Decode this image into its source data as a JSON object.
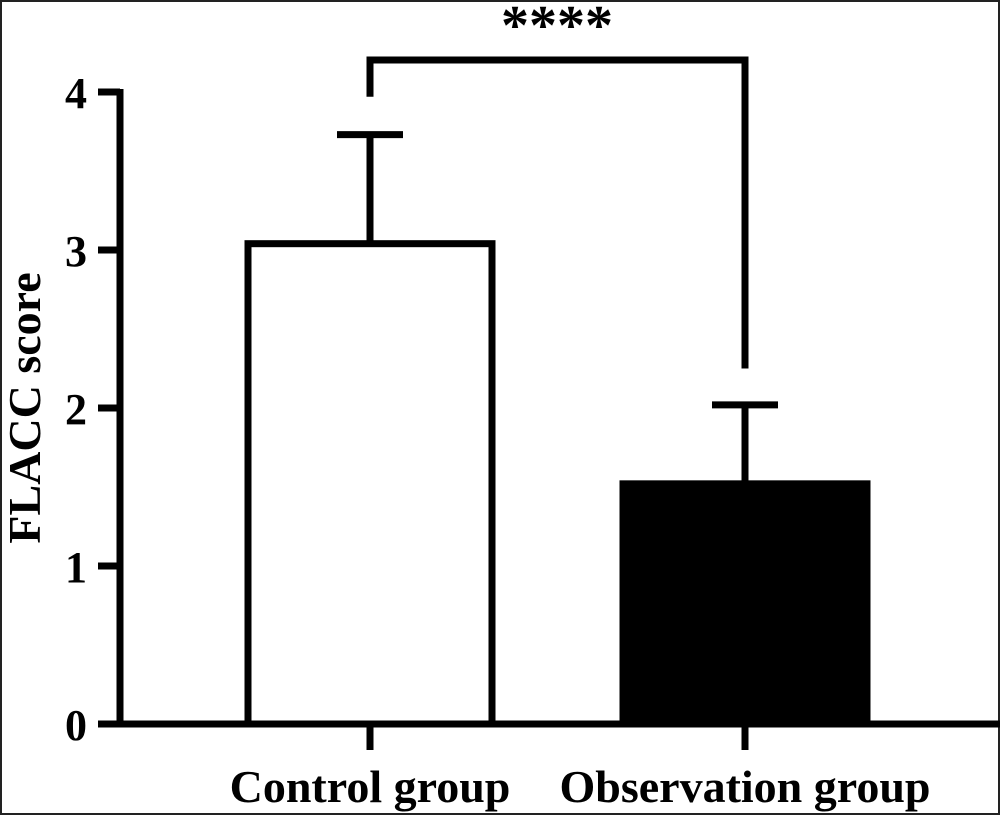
{
  "chart_data": {
    "type": "bar",
    "title": "",
    "xlabel": "",
    "ylabel": "FLACC score",
    "ylim": [
      0,
      4
    ],
    "yticks": [
      "0",
      "1",
      "2",
      "3",
      "4"
    ],
    "categories": [
      "Control group",
      "Observation group"
    ],
    "values": [
      3.04,
      1.52
    ],
    "error_upper": [
      3.73,
      2.02
    ],
    "bar_fill": [
      "#ffffff",
      "#000000"
    ],
    "bar_stroke": "#000000",
    "significance": {
      "label": "****",
      "between": [
        "Control group",
        "Observation group"
      ]
    },
    "grid": false,
    "legend": "none"
  }
}
